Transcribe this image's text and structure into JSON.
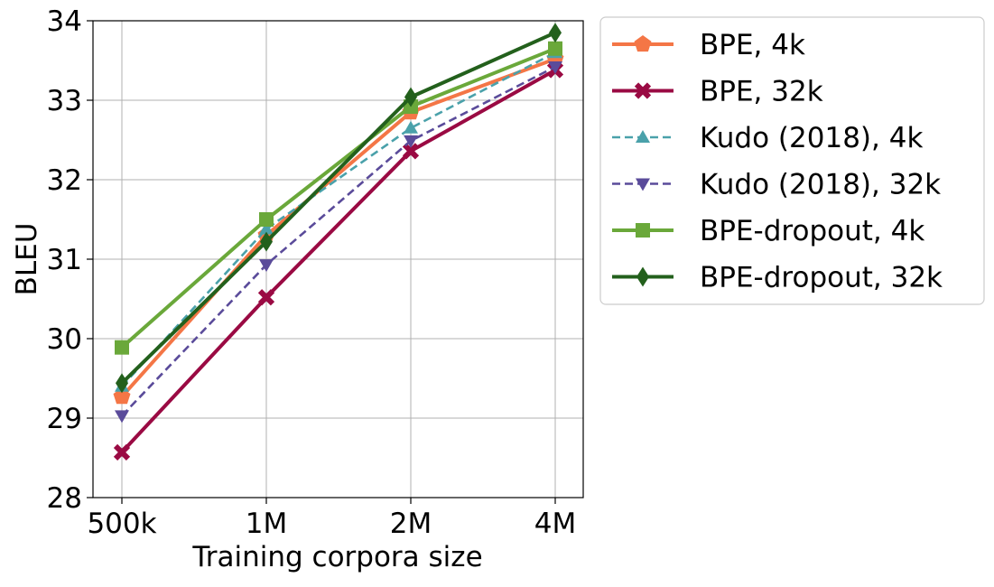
{
  "chart_data": {
    "type": "line",
    "title": "",
    "xlabel": "Training corpora size",
    "ylabel": "BLEU",
    "categories": [
      "500k",
      "1M",
      "2M",
      "4M"
    ],
    "ylim": [
      28,
      34
    ],
    "yticks": [
      28,
      29,
      30,
      31,
      32,
      33,
      34
    ],
    "grid": true,
    "legend_position": "outside-right",
    "series": [
      {
        "name": "BPE, 4k",
        "values": [
          29.27,
          31.3,
          32.85,
          33.52
        ],
        "color": "#f47646",
        "linestyle": "solid",
        "marker": "pentagon"
      },
      {
        "name": "BPE, 32k",
        "values": [
          28.57,
          30.52,
          32.36,
          33.38
        ],
        "color": "#9a0a43",
        "linestyle": "solid",
        "marker": "x"
      },
      {
        "name": "Kudo (2018), 4k",
        "values": [
          29.4,
          31.38,
          32.65,
          33.6
        ],
        "color": "#4aa1aa",
        "linestyle": "dashed",
        "marker": "triangle-up"
      },
      {
        "name": "Kudo (2018), 32k",
        "values": [
          29.03,
          30.93,
          32.49,
          33.42
        ],
        "color": "#5a4b9a",
        "linestyle": "dashed",
        "marker": "triangle-down"
      },
      {
        "name": "BPE-dropout, 4k",
        "values": [
          29.89,
          31.5,
          32.92,
          33.65
        ],
        "color": "#6aa83a",
        "linestyle": "solid",
        "marker": "square"
      },
      {
        "name": "BPE-dropout, 32k",
        "values": [
          29.44,
          31.22,
          33.04,
          33.85
        ],
        "color": "#23601c",
        "linestyle": "solid",
        "marker": "diamond"
      }
    ]
  }
}
